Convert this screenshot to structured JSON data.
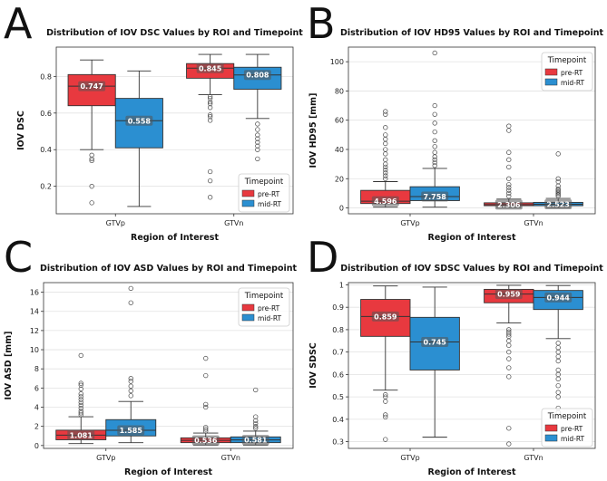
{
  "panel_letters": [
    "A",
    "B",
    "C",
    "D"
  ],
  "colors": {
    "pre": "#e8393f",
    "mid": "#2b8fd1",
    "median": "#333333",
    "whisker": "#333333"
  },
  "chart_data": [
    {
      "type": "box",
      "title": "Distribution of IOV DSC Values by ROI and Timepoint",
      "xlabel": "Region of Interest",
      "ylabel": "IOV DSC",
      "categories": [
        "GTVp",
        "GTVn"
      ],
      "ylim": [
        0.05,
        0.96
      ],
      "yticks": [
        0.2,
        0.4,
        0.6,
        0.8
      ],
      "grid": true,
      "legend": {
        "title": "Timepoint",
        "placement": "bottom-right"
      },
      "series": [
        {
          "name": "pre-RT",
          "color": "#e8393f",
          "boxes": [
            {
              "q1": 0.64,
              "median": 0.747,
              "q3": 0.81,
              "lo": 0.4,
              "hi": 0.89,
              "outliers": [
                0.37,
                0.35,
                0.34,
                0.2,
                0.11
              ],
              "label": "0.747"
            },
            {
              "q1": 0.79,
              "median": 0.845,
              "q3": 0.87,
              "lo": 0.7,
              "hi": 0.92,
              "outliers": [
                0.69,
                0.68,
                0.66,
                0.65,
                0.63,
                0.59,
                0.58,
                0.56,
                0.28,
                0.23,
                0.14
              ],
              "label": "0.845"
            }
          ]
        },
        {
          "name": "mid-RT",
          "color": "#2b8fd1",
          "boxes": [
            {
              "q1": 0.41,
              "median": 0.558,
              "q3": 0.68,
              "lo": 0.09,
              "hi": 0.83,
              "outliers": [],
              "label": "0.558"
            },
            {
              "q1": 0.73,
              "median": 0.808,
              "q3": 0.85,
              "lo": 0.57,
              "hi": 0.92,
              "outliers": [
                0.54,
                0.51,
                0.48,
                0.46,
                0.44,
                0.42,
                0.4,
                0.35
              ],
              "label": "0.808"
            }
          ]
        }
      ]
    },
    {
      "type": "box",
      "title": "Distribution of IOV HD95 Values by ROI and Timepoint",
      "xlabel": "Region of Interest",
      "ylabel": "IOV HD95 [mm]",
      "categories": [
        "GTVp",
        "GTVn"
      ],
      "ylim": [
        -4,
        110
      ],
      "yticks": [
        0,
        20,
        40,
        60,
        80,
        100
      ],
      "grid": true,
      "legend": {
        "title": "Timepoint",
        "placement": "top-right"
      },
      "series": [
        {
          "name": "pre-RT",
          "color": "#e8393f",
          "boxes": [
            {
              "q1": 3.0,
              "median": 4.596,
              "q3": 12.0,
              "lo": 0.5,
              "hi": 18.0,
              "outliers": [
                20,
                22,
                24,
                26,
                28,
                30,
                33,
                37,
                40,
                44,
                47,
                50,
                55,
                64,
                66
              ],
              "label": "4.596"
            },
            {
              "q1": 1.5,
              "median": 2.306,
              "q3": 3.5,
              "lo": 0.3,
              "hi": 6.0,
              "outliers": [
                8,
                10,
                12,
                14,
                16,
                20,
                28,
                33,
                38,
                53,
                56
              ],
              "label": "2.306"
            }
          ]
        },
        {
          "name": "mid-RT",
          "color": "#2b8fd1",
          "boxes": [
            {
              "q1": 5.0,
              "median": 7.758,
              "q3": 14.5,
              "lo": 0.5,
              "hi": 27.0,
              "outliers": [
                29,
                31,
                33,
                35,
                38,
                42,
                46,
                52,
                58,
                64,
                70,
                106
              ],
              "label": "7.758"
            },
            {
              "q1": 1.5,
              "median": 2.523,
              "q3": 3.8,
              "lo": 0.3,
              "hi": 6.5,
              "outliers": [
                8,
                9,
                10,
                11,
                12,
                13,
                15,
                18,
                20,
                37
              ],
              "label": "2.523"
            }
          ]
        }
      ]
    },
    {
      "type": "box",
      "title": "Distribution of IOV ASD Values by ROI and Timepoint",
      "xlabel": "Region of Interest",
      "ylabel": "IOV ASD [mm]",
      "categories": [
        "GTVp",
        "GTVn"
      ],
      "ylim": [
        -0.3,
        17
      ],
      "yticks": [
        0,
        2,
        4,
        6,
        8,
        10,
        12,
        14,
        16
      ],
      "grid": true,
      "legend": {
        "title": "Timepoint",
        "placement": "top-right"
      },
      "series": [
        {
          "name": "pre-RT",
          "color": "#e8393f",
          "boxes": [
            {
              "q1": 0.6,
              "median": 1.081,
              "q3": 1.6,
              "lo": 0.2,
              "hi": 3.0,
              "outliers": [
                3.2,
                3.4,
                3.6,
                3.9,
                4.2,
                4.5,
                4.8,
                5.1,
                5.4,
                5.9,
                6.3,
                6.5,
                9.4
              ],
              "label": "1.081"
            },
            {
              "q1": 0.3,
              "median": 0.536,
              "q3": 0.8,
              "lo": 0.05,
              "hi": 1.3,
              "outliers": [
                1.5,
                1.7,
                1.9,
                4.0,
                4.3,
                7.3,
                9.1
              ],
              "label": "0.536"
            }
          ]
        },
        {
          "name": "mid-RT",
          "color": "#2b8fd1",
          "boxes": [
            {
              "q1": 1.0,
              "median": 1.585,
              "q3": 2.7,
              "lo": 0.3,
              "hi": 4.6,
              "outliers": [
                5.2,
                5.7,
                6.2,
                6.7,
                7.0,
                14.9,
                16.4
              ],
              "label": "1.585"
            },
            {
              "q1": 0.3,
              "median": 0.581,
              "q3": 0.9,
              "lo": 0.05,
              "hi": 1.5,
              "outliers": [
                1.8,
                2.0,
                2.3,
                2.6,
                3.0,
                5.8
              ],
              "label": "0.581"
            }
          ]
        }
      ]
    },
    {
      "type": "box",
      "title": "Distribution of IOV SDSC Values by ROI and Timepoint",
      "xlabel": "Region of Interest",
      "ylabel": "IOV SDSC",
      "categories": [
        "GTVp",
        "GTVn"
      ],
      "ylim": [
        0.27,
        1.01
      ],
      "yticks": [
        0.3,
        0.4,
        0.5,
        0.6,
        0.7,
        0.8,
        0.9,
        1.0
      ],
      "grid": true,
      "legend": {
        "title": "Timepoint",
        "placement": "bottom-right"
      },
      "series": [
        {
          "name": "pre-RT",
          "color": "#e8393f",
          "boxes": [
            {
              "q1": 0.77,
              "median": 0.859,
              "q3": 0.935,
              "lo": 0.53,
              "hi": 0.995,
              "outliers": [
                0.51,
                0.5,
                0.48,
                0.42,
                0.41,
                0.31
              ],
              "label": "0.859"
            },
            {
              "q1": 0.92,
              "median": 0.959,
              "q3": 0.98,
              "lo": 0.83,
              "hi": 0.998,
              "outliers": [
                0.8,
                0.79,
                0.78,
                0.77,
                0.75,
                0.73,
                0.7,
                0.67,
                0.63,
                0.59,
                0.36,
                0.29
              ],
              "label": "0.959"
            }
          ]
        },
        {
          "name": "mid-RT",
          "color": "#2b8fd1",
          "boxes": [
            {
              "q1": 0.62,
              "median": 0.745,
              "q3": 0.855,
              "lo": 0.32,
              "hi": 0.99,
              "outliers": [],
              "label": "0.745"
            },
            {
              "q1": 0.89,
              "median": 0.944,
              "q3": 0.975,
              "lo": 0.76,
              "hi": 0.997,
              "outliers": [
                0.74,
                0.72,
                0.7,
                0.68,
                0.66,
                0.62,
                0.6,
                0.58,
                0.55,
                0.52,
                0.5,
                0.45,
                0.43
              ],
              "label": "0.944"
            }
          ]
        }
      ]
    }
  ]
}
